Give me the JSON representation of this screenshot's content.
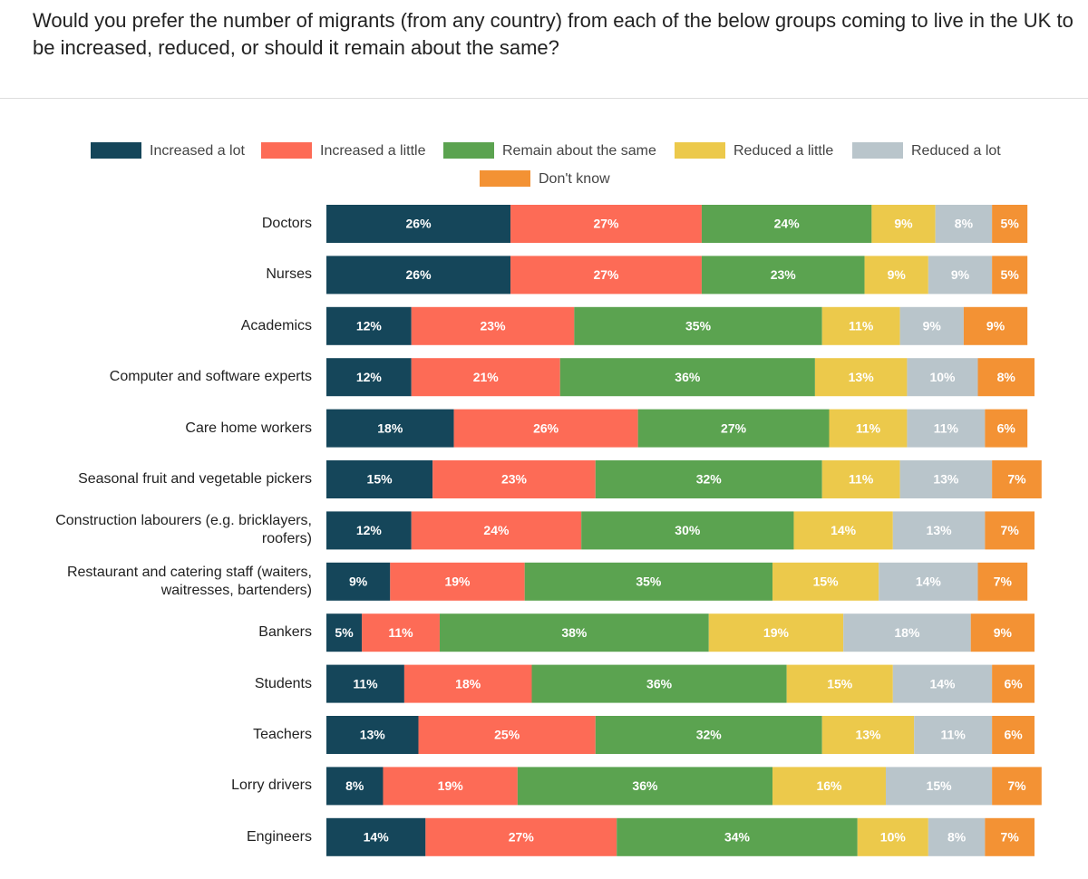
{
  "chart_data": {
    "type": "stacked-bar-horizontal",
    "title": "Would you prefer the number of migrants (from any country) from each of the below groups coming to live in the UK to be increased, reduced, or should it remain about the same?",
    "categories": [
      "Doctors",
      "Nurses",
      "Academics",
      "Computer and software experts",
      "Care home workers",
      "Seasonal fruit and vegetable pickers",
      "Construction labourers (e.g. bricklayers, roofers)",
      "Restaurant and catering staff (waiters, waitresses, bartenders)",
      "Bankers",
      "Students",
      "Teachers",
      "Lorry drivers",
      "Engineers"
    ],
    "xlim": [
      0,
      100
    ],
    "series": [
      {
        "name": "Increased a lot",
        "color": "#15465a",
        "values": [
          26,
          26,
          12,
          12,
          18,
          15,
          12,
          9,
          5,
          11,
          13,
          8,
          14
        ],
        "value_labels": [
          "26%",
          "26%",
          "12%",
          "12%",
          "18%",
          "15%",
          "12%",
          "9%",
          "5%",
          "11%",
          "13%",
          "8%",
          "14%"
        ]
      },
      {
        "name": "Increased a little",
        "color": "#fd6b56",
        "values": [
          27,
          27,
          23,
          21,
          26,
          23,
          24,
          19,
          11,
          18,
          25,
          19,
          27
        ],
        "value_labels": [
          "27%",
          "27%",
          "23%",
          "21%",
          "26%",
          "23%",
          "24%",
          "19%",
          "11%",
          "18%",
          "25%",
          "19%",
          "27%"
        ]
      },
      {
        "name": "Remain about the same",
        "color": "#5ba350",
        "values": [
          24,
          23,
          35,
          36,
          27,
          32,
          30,
          35,
          38,
          36,
          32,
          36,
          34
        ],
        "value_labels": [
          "24%",
          "23%",
          "35%",
          "36%",
          "27%",
          "32%",
          "30%",
          "35%",
          "38%",
          "36%",
          "32%",
          "36%",
          "34%"
        ]
      },
      {
        "name": "Reduced a little",
        "color": "#ecc94b",
        "values": [
          9,
          9,
          11,
          13,
          11,
          11,
          14,
          15,
          19,
          15,
          13,
          16,
          10
        ],
        "value_labels": [
          "9%",
          "9%",
          "11%",
          "13%",
          "11%",
          "11%",
          "14%",
          "15%",
          "19%",
          "15%",
          "13%",
          "16%",
          "10%"
        ]
      },
      {
        "name": "Reduced a lot",
        "color": "#b9c5cb",
        "values": [
          8,
          9,
          9,
          10,
          11,
          13,
          13,
          14,
          18,
          14,
          11,
          15,
          8
        ],
        "value_labels": [
          "8%",
          "9%",
          "9%",
          "10%",
          "11%",
          "13%",
          "13%",
          "14%",
          "18%",
          "14%",
          "11%",
          "15%",
          "8%"
        ]
      },
      {
        "name": "Don't know",
        "color": "#f39234",
        "values": [
          5,
          5,
          9,
          8,
          6,
          7,
          7,
          7,
          9,
          6,
          6,
          7,
          7
        ],
        "value_labels": [
          "5%",
          "5%",
          "9%",
          "8%",
          "6%",
          "7%",
          "7%",
          "7%",
          "9%",
          "6%",
          "6%",
          "7%",
          "7%"
        ]
      }
    ]
  }
}
